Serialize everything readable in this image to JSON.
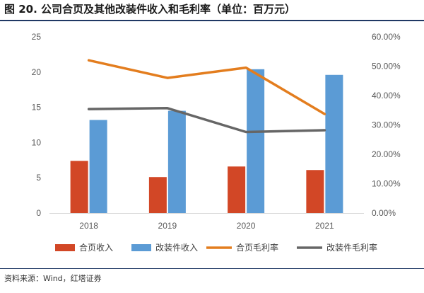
{
  "title": "图 20. 公司合页及其他改装件收入和毛利率（单位：百万元）",
  "source": "资料来源：Wind，红塔证券",
  "chart_data": {
    "type": "bar+line",
    "categories": [
      "2018",
      "2019",
      "2020",
      "2021"
    ],
    "bar_series": [
      {
        "name": "合页收入",
        "color": "#d24726",
        "values": [
          7.4,
          5.1,
          6.6,
          6.1
        ]
      },
      {
        "name": "改装件收入",
        "color": "#5b9bd5",
        "values": [
          13.2,
          14.5,
          20.4,
          19.6
        ]
      }
    ],
    "line_series": [
      {
        "name": "合页毛利率",
        "color": "#e37d1e",
        "values": [
          0.52,
          0.46,
          0.495,
          0.337
        ]
      },
      {
        "name": "改装件毛利率",
        "color": "#666666",
        "values": [
          0.354,
          0.357,
          0.276,
          0.282
        ]
      }
    ],
    "y_left": {
      "min": 0,
      "max": 25,
      "ticks": [
        "0",
        "5",
        "10",
        "15",
        "20",
        "25"
      ]
    },
    "y_right": {
      "min": 0,
      "max": 0.6,
      "ticks": [
        "0.00%",
        "10.00%",
        "20.00%",
        "30.00%",
        "40.00%",
        "50.00%",
        "60.00%"
      ]
    },
    "legend_position": "bottom",
    "grid": false
  }
}
